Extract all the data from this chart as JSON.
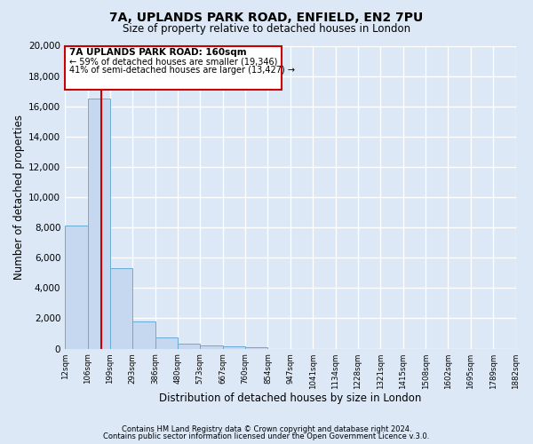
{
  "title": "7A, UPLANDS PARK ROAD, ENFIELD, EN2 7PU",
  "subtitle": "Size of property relative to detached houses in London",
  "xlabel": "Distribution of detached houses by size in London",
  "ylabel": "Number of detached properties",
  "bar_values": [
    8100,
    16500,
    5300,
    1800,
    750,
    300,
    200,
    150,
    100,
    0,
    0,
    0,
    0,
    0,
    0,
    0,
    0,
    0,
    0,
    0
  ],
  "bin_labels": [
    "12sqm",
    "106sqm",
    "199sqm",
    "293sqm",
    "386sqm",
    "480sqm",
    "573sqm",
    "667sqm",
    "760sqm",
    "854sqm",
    "947sqm",
    "1041sqm",
    "1134sqm",
    "1228sqm",
    "1321sqm",
    "1415sqm",
    "1508sqm",
    "1602sqm",
    "1695sqm",
    "1789sqm",
    "1882sqm"
  ],
  "bar_color": "#c5d8f0",
  "bar_edge_color": "#6aaad4",
  "vline_color": "#cc0000",
  "ylim": [
    0,
    20000
  ],
  "yticks": [
    0,
    2000,
    4000,
    6000,
    8000,
    10000,
    12000,
    14000,
    16000,
    18000,
    20000
  ],
  "annotation_title": "7A UPLANDS PARK ROAD: 160sqm",
  "annotation_line1": "← 59% of detached houses are smaller (19,346)",
  "annotation_line2": "41% of semi-detached houses are larger (13,427) →",
  "footer1": "Contains HM Land Registry data © Crown copyright and database right 2024.",
  "footer2": "Contains public sector information licensed under the Open Government Licence v.3.0.",
  "background_color": "#dce8f5",
  "plot_bg_color": "#dce8f5",
  "grid_color": "#ffffff",
  "figsize": [
    6.0,
    5.0
  ],
  "dpi": 100
}
